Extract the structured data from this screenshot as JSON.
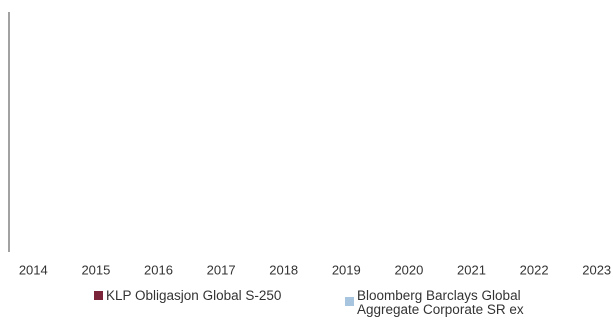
{
  "chart_data": {
    "type": "bar",
    "categories": [
      "2014",
      "2015",
      "2016",
      "2017",
      "2018",
      "2019",
      "2020",
      "2021",
      "2022",
      "2023"
    ],
    "series": [
      {
        "name": "KLP Obligasjon Global S-250",
        "color": "#7b2338",
        "values": [
          null,
          null,
          null,
          null,
          null,
          null,
          null,
          null,
          null,
          null
        ]
      },
      {
        "name": "Bloomberg Barclays Global Aggregate Corporate SR ex",
        "color": "#a8c5df",
        "values": [
          null,
          null,
          null,
          null,
          null,
          null,
          null,
          null,
          null,
          null
        ]
      }
    ]
  }
}
